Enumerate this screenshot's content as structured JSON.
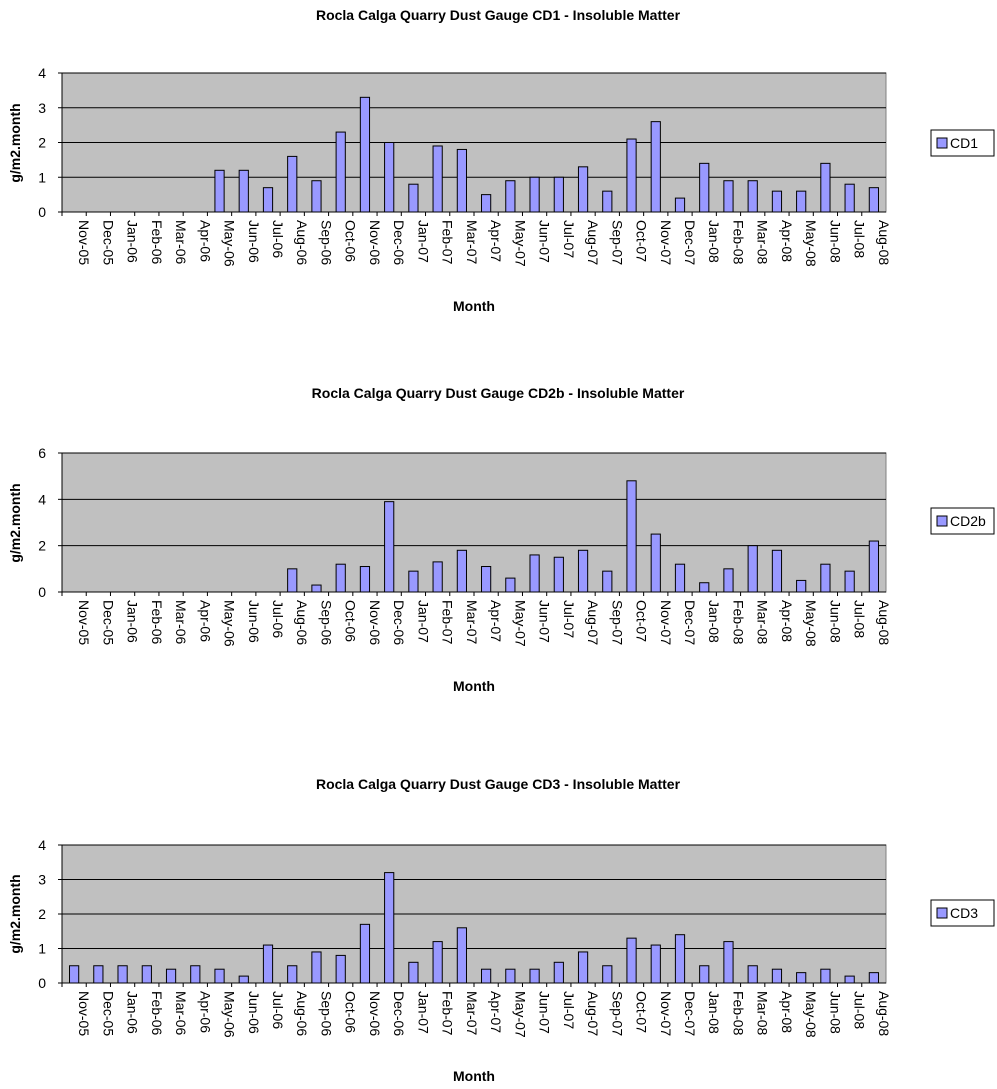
{
  "chart_data": [
    {
      "type": "bar",
      "title": "Rocla Calga Quarry Dust Gauge CD1 - Insoluble Matter",
      "xlabel": "Month",
      "ylabel": "g/m2.month",
      "ylim": [
        0,
        4
      ],
      "yticks": [
        0,
        1,
        2,
        3,
        4
      ],
      "grid": true,
      "legend": "right",
      "categories": [
        "Nov-05",
        "Dec-05",
        "Jan-06",
        "Feb-06",
        "Mar-06",
        "Apr-06",
        "May-06",
        "Jun-06",
        "Jul-06",
        "Aug-06",
        "Sep-06",
        "Oct-06",
        "Nov-06",
        "Dec-06",
        "Jan-07",
        "Feb-07",
        "Mar-07",
        "Apr-07",
        "May-07",
        "Jun-07",
        "Jul-07",
        "Aug-07",
        "Sep-07",
        "Oct-07",
        "Nov-07",
        "Dec-07",
        "Jan-08",
        "Feb-08",
        "Mar-08",
        "Apr-08",
        "May-08",
        "Jun-08",
        "Jul-08",
        "Aug-08"
      ],
      "series": [
        {
          "name": "CD1",
          "values": [
            null,
            null,
            null,
            null,
            null,
            null,
            1.2,
            1.2,
            0.7,
            1.6,
            0.9,
            2.3,
            3.3,
            2.0,
            0.8,
            1.9,
            1.8,
            0.5,
            0.9,
            1.0,
            1.0,
            1.3,
            0.6,
            2.1,
            2.6,
            0.4,
            1.4,
            0.9,
            0.9,
            0.6,
            0.6,
            1.4,
            0.8,
            0.7
          ]
        }
      ]
    },
    {
      "type": "bar",
      "title": "Rocla Calga Quarry Dust Gauge CD2b - Insoluble Matter",
      "xlabel": "Month",
      "ylabel": "g/m2.month",
      "ylim": [
        0,
        6
      ],
      "yticks": [
        0,
        2,
        4,
        6
      ],
      "grid": true,
      "legend": "right",
      "categories": [
        "Nov-05",
        "Dec-05",
        "Jan-06",
        "Feb-06",
        "Mar-06",
        "Apr-06",
        "May-06",
        "Jun-06",
        "Jul-06",
        "Aug-06",
        "Sep-06",
        "Oct-06",
        "Nov-06",
        "Dec-06",
        "Jan-07",
        "Feb-07",
        "Mar-07",
        "Apr-07",
        "May-07",
        "Jun-07",
        "Jul-07",
        "Aug-07",
        "Sep-07",
        "Oct-07",
        "Nov-07",
        "Dec-07",
        "Jan-08",
        "Feb-08",
        "Mar-08",
        "Apr-08",
        "May-08",
        "Jun-08",
        "Jul-08",
        "Aug-08"
      ],
      "series": [
        {
          "name": "CD2b",
          "values": [
            null,
            null,
            null,
            null,
            null,
            null,
            null,
            null,
            null,
            1.0,
            0.3,
            1.2,
            1.1,
            3.9,
            0.9,
            1.3,
            1.8,
            1.1,
            0.6,
            1.6,
            1.5,
            1.8,
            0.9,
            4.8,
            2.5,
            1.2,
            0.4,
            1.0,
            2.0,
            1.8,
            0.5,
            1.2,
            0.9,
            2.2
          ]
        }
      ]
    },
    {
      "type": "bar",
      "title": "Rocla Calga Quarry Dust Gauge CD3 - Insoluble Matter",
      "xlabel": "Month",
      "ylabel": "g/m2.month",
      "ylim": [
        0,
        4
      ],
      "yticks": [
        0,
        1,
        2,
        3,
        4
      ],
      "grid": true,
      "legend": "right",
      "categories": [
        "Nov-05",
        "Dec-05",
        "Jan-06",
        "Feb-06",
        "Mar-06",
        "Apr-06",
        "May-06",
        "Jun-06",
        "Jul-06",
        "Aug-06",
        "Sep-06",
        "Oct-06",
        "Nov-06",
        "Dec-06",
        "Jan-07",
        "Feb-07",
        "Mar-07",
        "Apr-07",
        "May-07",
        "Jun-07",
        "Jul-07",
        "Aug-07",
        "Sep-07",
        "Oct-07",
        "Nov-07",
        "Dec-07",
        "Jan-08",
        "Feb-08",
        "Mar-08",
        "Apr-08",
        "May-08",
        "Jun-08",
        "Jul-08",
        "Aug-08"
      ],
      "series": [
        {
          "name": "CD3",
          "values": [
            0.5,
            0.5,
            0.5,
            0.5,
            0.4,
            0.5,
            0.4,
            0.2,
            1.1,
            0.5,
            0.9,
            0.8,
            1.7,
            3.2,
            0.6,
            1.2,
            1.6,
            0.4,
            0.4,
            0.4,
            0.6,
            0.9,
            0.5,
            1.3,
            1.1,
            1.4,
            0.5,
            1.2,
            0.5,
            0.4,
            0.3,
            0.4,
            0.2,
            0.3
          ]
        }
      ]
    }
  ],
  "colors": {
    "plot_area": "#c0c0c0",
    "bar_fill": "#9999ff",
    "bar_stroke": "#000000",
    "gridline": "#000000",
    "text": "#000000"
  }
}
